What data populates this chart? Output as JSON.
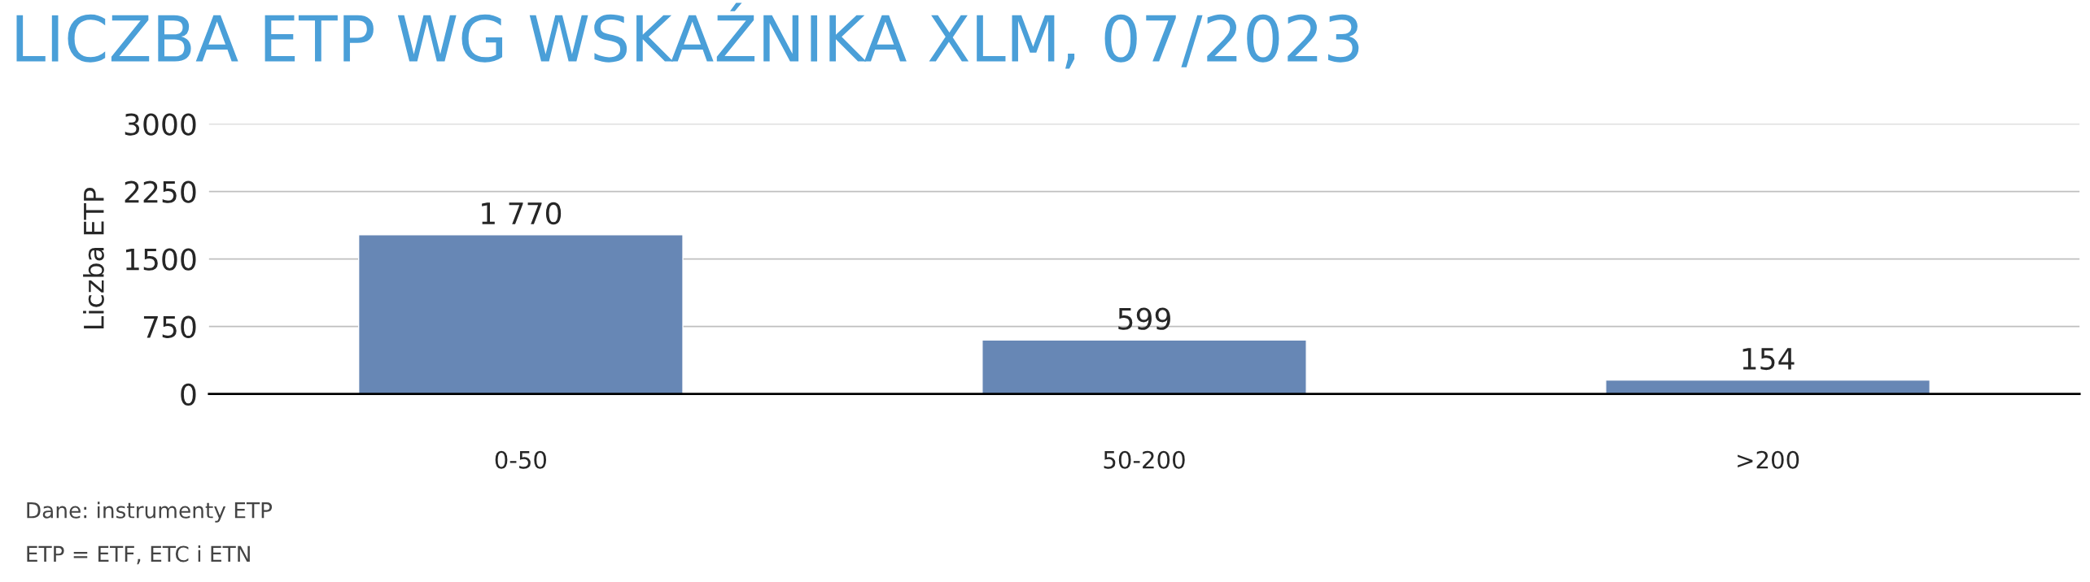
{
  "chart_data": {
    "type": "bar",
    "title": "LICZBA ETP WG WSKAŹNIKA XLM, 07/2023",
    "ylabel": "Liczba ETP",
    "categories": [
      "0-50",
      "50-200",
      ">200"
    ],
    "values": [
      1770,
      599,
      154
    ],
    "value_labels": [
      "1 770",
      "599",
      "154"
    ],
    "color": "#6787b5",
    "ylim": [
      0,
      3000
    ],
    "yticks": [
      0,
      750,
      1500,
      2250,
      3000
    ],
    "grid": "y",
    "annotations": [
      "Dane: instrumenty ETP",
      "ETP = ETF, ETC i ETN"
    ]
  }
}
